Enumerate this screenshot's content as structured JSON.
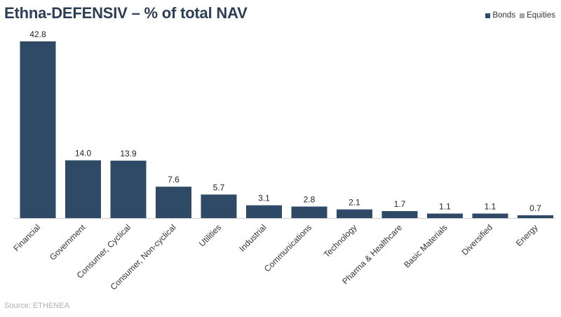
{
  "title": "Ethna-DEFENSIV – % of total NAV",
  "legend": [
    {
      "label": "Bonds",
      "color": "#2f4a66"
    },
    {
      "label": "Equities",
      "color": "#a6a6a6"
    }
  ],
  "source": "Source: ETHENEA",
  "chart_data": {
    "type": "bar",
    "title": "Ethna-DEFENSIV – % of total NAV",
    "xlabel": "",
    "ylabel": "",
    "ylim": [
      0,
      45
    ],
    "grid": false,
    "legend_position": "top-right",
    "categories": [
      "Financial",
      "Government",
      "Consumer, Cyclical",
      "Consumer, Non-cyclical",
      "Utilities",
      "Industrial",
      "Communications",
      "Technology",
      "Pharma & Healthcare",
      "Basic Materials",
      "Diversified",
      "Energy"
    ],
    "series": [
      {
        "name": "Bonds",
        "color": "#2f4a66",
        "values": [
          42.8,
          14.0,
          13.9,
          7.6,
          5.7,
          3.1,
          2.8,
          2.1,
          1.7,
          1.1,
          1.1,
          0.7
        ],
        "labels": [
          "42.8",
          "14.0",
          "13.9",
          "7.6",
          "5.7",
          "3.1",
          "2.8",
          "2.1",
          "1.7",
          "1.1",
          "1.1",
          "0.7"
        ]
      },
      {
        "name": "Equities",
        "color": "#a6a6a6",
        "values": [
          0,
          0,
          0,
          0,
          0,
          0,
          0,
          0,
          0,
          0,
          0,
          0
        ]
      }
    ]
  }
}
